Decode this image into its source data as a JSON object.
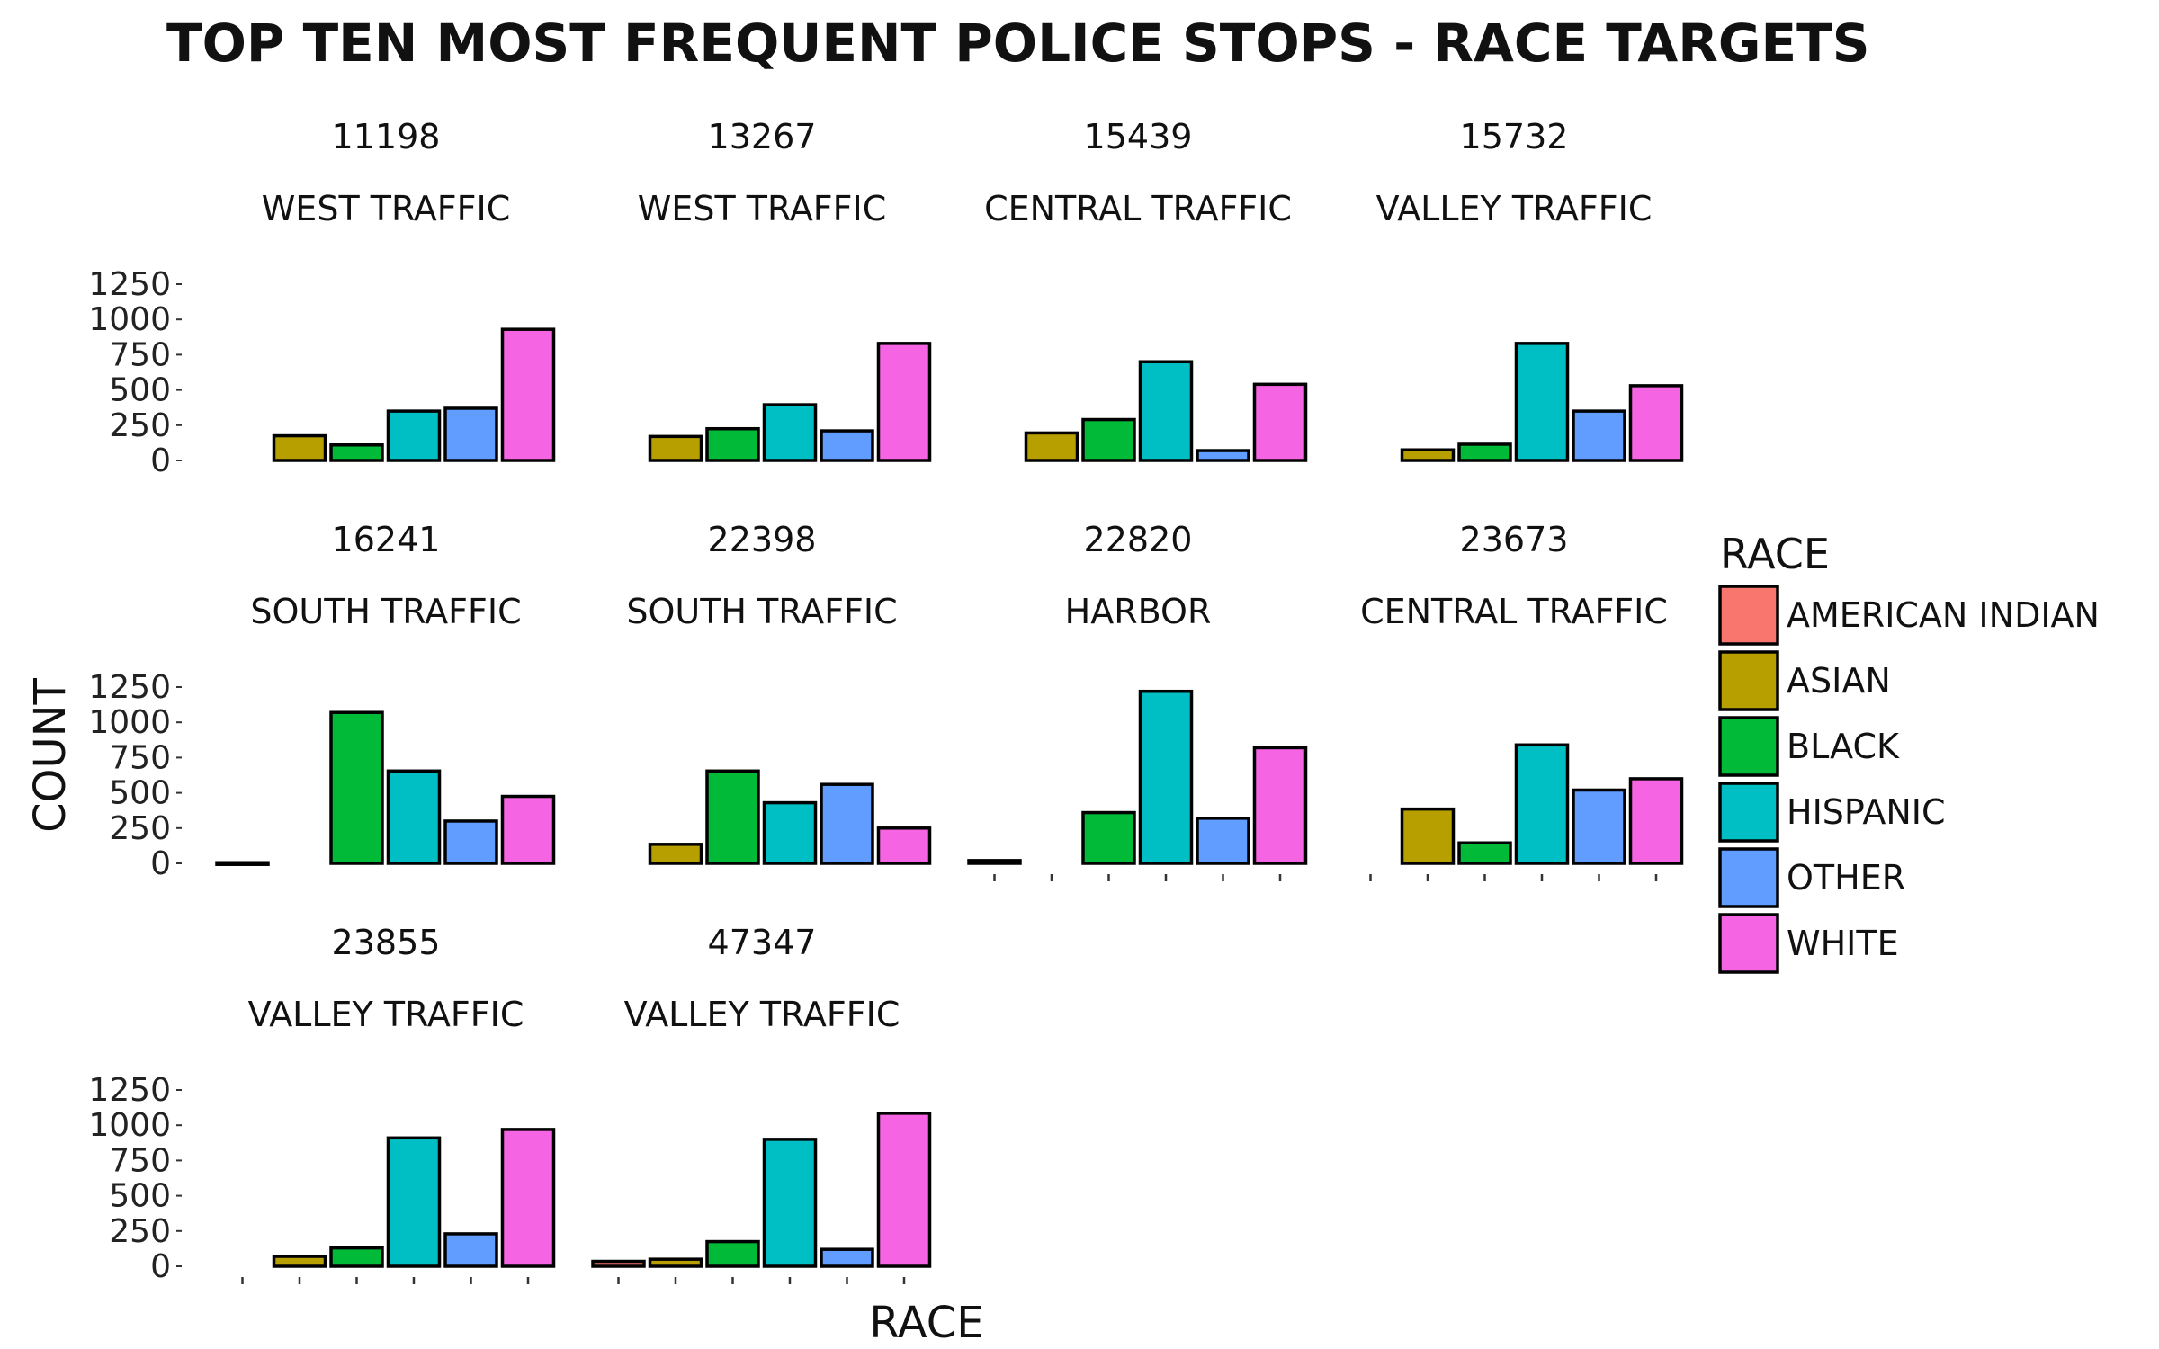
{
  "chart_data": {
    "type": "bar",
    "title": "TOP TEN MOST FREQUENT POLICE STOPS - RACE TARGETS",
    "xlabel": "RACE",
    "ylabel": "COUNT",
    "ylim": [
      0,
      1250
    ],
    "yticks": [
      "0",
      "250",
      "500",
      "750",
      "1000",
      "1250"
    ],
    "ytick_values": [
      0,
      250,
      500,
      750,
      1000,
      1250
    ],
    "categories": [
      "AMERICAN INDIAN",
      "ASIAN",
      "BLACK",
      "HISPANIC",
      "OTHER",
      "WHITE"
    ],
    "colors": [
      "#F8766D",
      "#B79F00",
      "#00BA38",
      "#00BFC4",
      "#619CFF",
      "#F564E3"
    ],
    "legend": {
      "title": "RACE",
      "placement": "right",
      "entries": [
        "AMERICAN INDIAN",
        "ASIAN",
        "BLACK",
        "HISPANIC",
        "OTHER",
        "WHITE"
      ]
    },
    "grid": false,
    "facets": [
      {
        "id": "11198",
        "area": "WEST TRAFFIC",
        "values": [
          0,
          175,
          110,
          350,
          370,
          930
        ]
      },
      {
        "id": "13267",
        "area": "WEST TRAFFIC",
        "values": [
          0,
          170,
          225,
          395,
          210,
          830
        ]
      },
      {
        "id": "15439",
        "area": "CENTRAL TRAFFIC",
        "values": [
          0,
          195,
          290,
          700,
          70,
          540
        ]
      },
      {
        "id": "15732",
        "area": "VALLEY TRAFFIC",
        "values": [
          0,
          75,
          115,
          830,
          350,
          530
        ]
      },
      {
        "id": "16241",
        "area": "SOUTH TRAFFIC",
        "values": [
          5,
          0,
          1070,
          655,
          300,
          475
        ]
      },
      {
        "id": "22398",
        "area": "SOUTH TRAFFIC",
        "values": [
          0,
          135,
          655,
          430,
          560,
          250
        ]
      },
      {
        "id": "22820",
        "area": "HARBOR",
        "values": [
          20,
          0,
          360,
          1220,
          320,
          820
        ]
      },
      {
        "id": "23673",
        "area": "CENTRAL TRAFFIC",
        "values": [
          0,
          385,
          145,
          840,
          520,
          600
        ]
      },
      {
        "id": "23855",
        "area": "VALLEY TRAFFIC",
        "values": [
          0,
          70,
          130,
          910,
          230,
          970
        ]
      },
      {
        "id": "47347",
        "area": "VALLEY TRAFFIC",
        "values": [
          35,
          50,
          175,
          900,
          120,
          1085
        ]
      }
    ]
  }
}
